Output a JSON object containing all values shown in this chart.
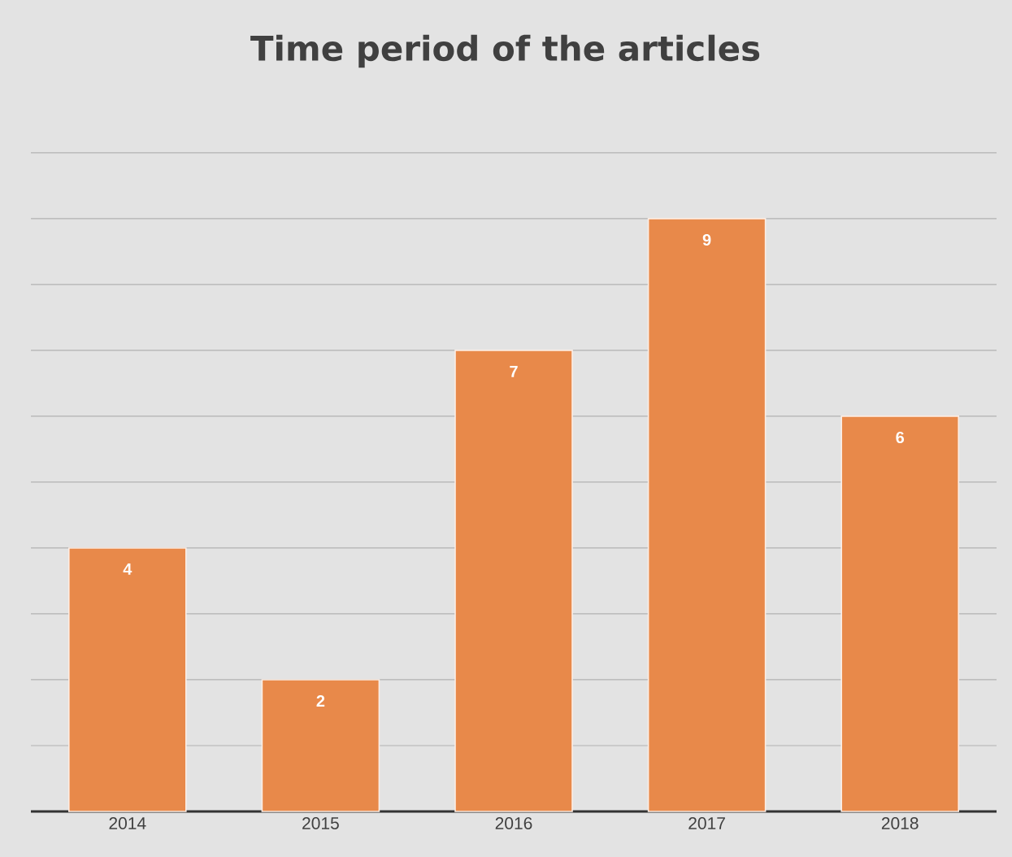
{
  "chart_data": {
    "type": "bar",
    "title": "Time period of the articles",
    "categories": [
      "2014",
      "2015",
      "2016",
      "2017",
      "2018"
    ],
    "values": [
      4,
      2,
      7,
      9,
      6
    ],
    "color": "#e8894a",
    "grid": "y",
    "tick_labels": "x",
    "data_labels": true
  }
}
